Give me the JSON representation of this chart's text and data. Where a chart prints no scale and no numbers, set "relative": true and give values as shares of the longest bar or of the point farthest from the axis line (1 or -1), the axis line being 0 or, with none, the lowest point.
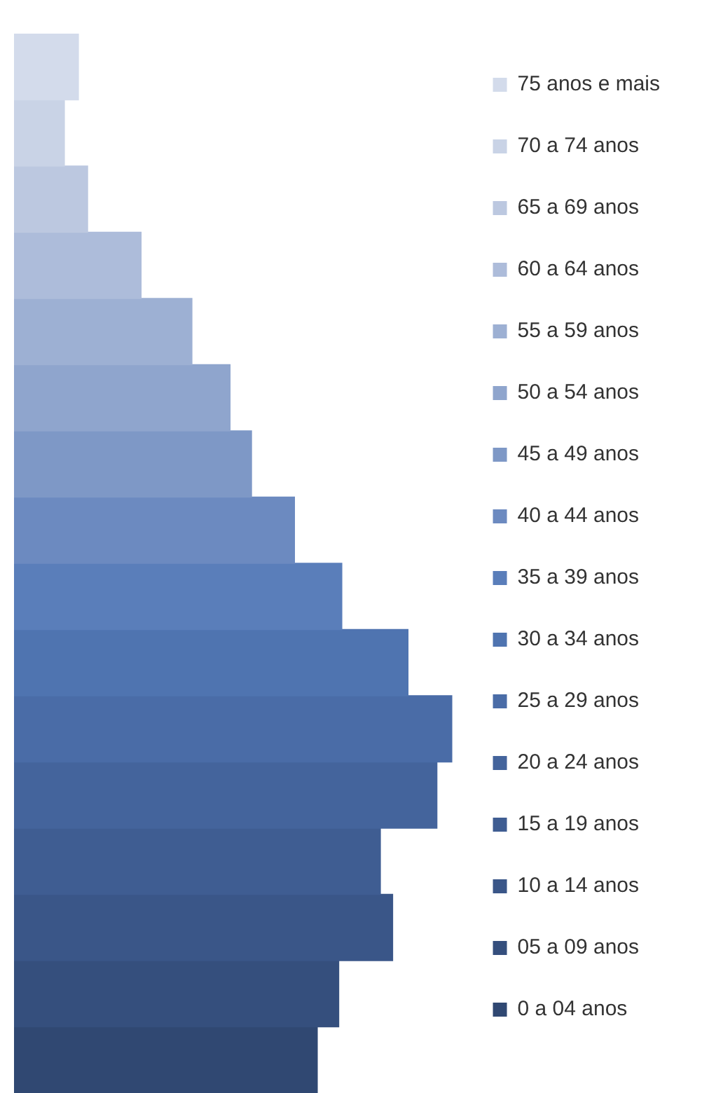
{
  "chart_data": {
    "type": "bar",
    "orientation": "horizontal",
    "relative": true,
    "stacked": true,
    "categories": [
      null,
      null,
      null,
      null,
      null,
      null,
      null,
      null,
      null,
      null,
      null,
      null,
      null,
      null,
      null,
      null
    ],
    "series": [
      {
        "name": "75 anos e mais",
        "color": "#d3dbeb",
        "values": [
          0.147,
          null,
          null,
          null,
          null,
          null,
          null,
          null,
          null,
          null,
          null,
          null,
          null,
          null,
          null,
          null
        ]
      },
      {
        "name": "70 a 74 anos",
        "color": "#c9d3e6",
        "values": [
          null,
          0.115,
          null,
          null,
          null,
          null,
          null,
          null,
          null,
          null,
          null,
          null,
          null,
          null,
          null,
          null
        ]
      },
      {
        "name": "65 a 69 anos",
        "color": "#bcc8e0",
        "values": [
          null,
          null,
          0.168,
          null,
          null,
          null,
          null,
          null,
          null,
          null,
          null,
          null,
          null,
          null,
          null,
          null
        ]
      },
      {
        "name": "60 a 64 anos",
        "color": "#adbcda",
        "values": [
          null,
          null,
          null,
          0.29,
          null,
          null,
          null,
          null,
          null,
          null,
          null,
          null,
          null,
          null,
          null,
          null
        ]
      },
      {
        "name": "55 a 59 anos",
        "color": "#9db0d3",
        "values": [
          null,
          null,
          null,
          null,
          0.406,
          null,
          null,
          null,
          null,
          null,
          null,
          null,
          null,
          null,
          null,
          null
        ]
      },
      {
        "name": "50 a 54 anos",
        "color": "#8fa5cd",
        "values": [
          null,
          null,
          null,
          null,
          null,
          0.493,
          null,
          null,
          null,
          null,
          null,
          null,
          null,
          null,
          null,
          null
        ]
      },
      {
        "name": "45 a 49 anos",
        "color": "#7e98c6",
        "values": [
          null,
          null,
          null,
          null,
          null,
          null,
          0.542,
          null,
          null,
          null,
          null,
          null,
          null,
          null,
          null,
          null
        ]
      },
      {
        "name": "40 a 44 anos",
        "color": "#6c8ac0",
        "values": [
          null,
          null,
          null,
          null,
          null,
          null,
          null,
          0.64,
          null,
          null,
          null,
          null,
          null,
          null,
          null,
          null
        ]
      },
      {
        "name": "35 a 39 anos",
        "color": "#5a7eba",
        "values": [
          null,
          null,
          null,
          null,
          null,
          null,
          null,
          null,
          0.748,
          null,
          null,
          null,
          null,
          null,
          null,
          null
        ]
      },
      {
        "name": "30 a 34 anos",
        "color": "#4f74b0",
        "values": [
          null,
          null,
          null,
          null,
          null,
          null,
          null,
          null,
          null,
          0.899,
          null,
          null,
          null,
          null,
          null,
          null
        ]
      },
      {
        "name": "25 a 29 anos",
        "color": "#4a6ca7",
        "values": [
          null,
          null,
          null,
          null,
          null,
          null,
          null,
          null,
          null,
          null,
          1,
          null,
          null,
          null,
          null,
          null
        ]
      },
      {
        "name": "20 a 24 anos",
        "color": "#44649c",
        "values": [
          null,
          null,
          null,
          null,
          null,
          null,
          null,
          null,
          null,
          null,
          null,
          0.965,
          null,
          null,
          null,
          null
        ]
      },
      {
        "name": "15 a 19 anos",
        "color": "#3f5d92",
        "values": [
          null,
          null,
          null,
          null,
          null,
          null,
          null,
          null,
          null,
          null,
          null,
          null,
          0.836,
          null,
          null,
          null
        ]
      },
      {
        "name": "10 a 14 anos",
        "color": "#3a5688",
        "values": [
          null,
          null,
          null,
          null,
          null,
          null,
          null,
          null,
          null,
          null,
          null,
          null,
          null,
          0.864,
          null,
          null
        ]
      },
      {
        "name": "05 a 09 anos",
        "color": "#354f7d",
        "values": [
          null,
          null,
          null,
          null,
          null,
          null,
          null,
          null,
          null,
          null,
          null,
          null,
          null,
          null,
          0.741,
          null
        ]
      },
      {
        "name": "0 a 04 anos",
        "color": "#304872",
        "values": [
          null,
          null,
          null,
          null,
          null,
          null,
          null,
          null,
          null,
          null,
          null,
          null,
          null,
          null,
          null,
          0.692
        ]
      }
    ],
    "grid": false,
    "tick_labels": false,
    "legend": "right"
  }
}
